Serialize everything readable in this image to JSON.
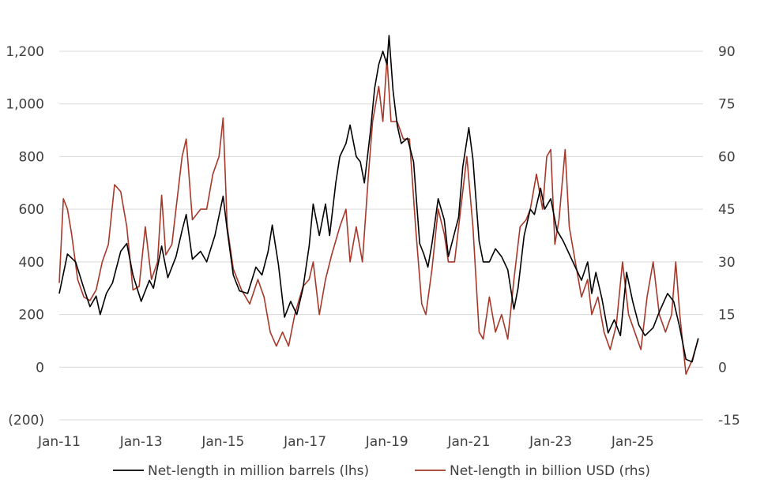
{
  "chart_data": {
    "type": "line",
    "grid": true,
    "legend_position": "bottom",
    "x_ticks": [
      "Jan-11",
      "Jan-13",
      "Jan-15",
      "Jan-17",
      "Jan-19",
      "Jan-21",
      "Jan-23",
      "Jan-25"
    ],
    "y_left": {
      "min": -200,
      "max": 1200,
      "ticks": [
        -200,
        0,
        200,
        400,
        600,
        800,
        1000,
        1200
      ],
      "tick_labels": [
        "(200)",
        "0",
        "200",
        "400",
        "600",
        "800",
        "1,000",
        "1,200"
      ]
    },
    "y_right": {
      "min": -15,
      "max": 90,
      "ticks": [
        -15,
        0,
        15,
        30,
        45,
        60,
        75,
        90
      ],
      "tick_labels": [
        "-15",
        "0",
        "15",
        "30",
        "45",
        "60",
        "75",
        "90"
      ]
    },
    "series": [
      {
        "name": "Net-length in million barrels (lhs)",
        "axis": "left",
        "color": "#000000",
        "points": [
          [
            2011.0,
            280
          ],
          [
            2011.2,
            430
          ],
          [
            2011.4,
            400
          ],
          [
            2011.6,
            300
          ],
          [
            2011.75,
            230
          ],
          [
            2011.9,
            270
          ],
          [
            2012.0,
            200
          ],
          [
            2012.15,
            280
          ],
          [
            2012.3,
            320
          ],
          [
            2012.5,
            440
          ],
          [
            2012.65,
            470
          ],
          [
            2012.8,
            350
          ],
          [
            2013.0,
            250
          ],
          [
            2013.2,
            330
          ],
          [
            2013.3,
            300
          ],
          [
            2013.5,
            460
          ],
          [
            2013.65,
            340
          ],
          [
            2013.85,
            420
          ],
          [
            2014.0,
            520
          ],
          [
            2014.1,
            580
          ],
          [
            2014.25,
            410
          ],
          [
            2014.45,
            440
          ],
          [
            2014.6,
            400
          ],
          [
            2014.8,
            500
          ],
          [
            2015.0,
            650
          ],
          [
            2015.1,
            520
          ],
          [
            2015.25,
            350
          ],
          [
            2015.4,
            290
          ],
          [
            2015.6,
            280
          ],
          [
            2015.8,
            380
          ],
          [
            2015.95,
            350
          ],
          [
            2016.1,
            440
          ],
          [
            2016.2,
            540
          ],
          [
            2016.35,
            390
          ],
          [
            2016.5,
            190
          ],
          [
            2016.65,
            250
          ],
          [
            2016.8,
            200
          ],
          [
            2016.95,
            300
          ],
          [
            2017.1,
            460
          ],
          [
            2017.2,
            620
          ],
          [
            2017.35,
            500
          ],
          [
            2017.5,
            620
          ],
          [
            2017.6,
            500
          ],
          [
            2017.75,
            700
          ],
          [
            2017.85,
            800
          ],
          [
            2018.0,
            850
          ],
          [
            2018.1,
            920
          ],
          [
            2018.25,
            800
          ],
          [
            2018.35,
            780
          ],
          [
            2018.45,
            700
          ],
          [
            2018.6,
            900
          ],
          [
            2018.7,
            1060
          ],
          [
            2018.8,
            1150
          ],
          [
            2018.9,
            1200
          ],
          [
            2019.0,
            1150
          ],
          [
            2019.05,
            1260
          ],
          [
            2019.15,
            1050
          ],
          [
            2019.25,
            920
          ],
          [
            2019.35,
            850
          ],
          [
            2019.5,
            870
          ],
          [
            2019.65,
            780
          ],
          [
            2019.8,
            470
          ],
          [
            2019.9,
            430
          ],
          [
            2020.0,
            380
          ],
          [
            2020.1,
            470
          ],
          [
            2020.25,
            640
          ],
          [
            2020.4,
            560
          ],
          [
            2020.5,
            420
          ],
          [
            2020.6,
            480
          ],
          [
            2020.75,
            570
          ],
          [
            2020.85,
            760
          ],
          [
            2021.0,
            910
          ],
          [
            2021.1,
            790
          ],
          [
            2021.25,
            480
          ],
          [
            2021.35,
            400
          ],
          [
            2021.5,
            400
          ],
          [
            2021.65,
            450
          ],
          [
            2021.8,
            420
          ],
          [
            2021.95,
            370
          ],
          [
            2022.1,
            220
          ],
          [
            2022.2,
            300
          ],
          [
            2022.35,
            500
          ],
          [
            2022.5,
            600
          ],
          [
            2022.6,
            580
          ],
          [
            2022.75,
            680
          ],
          [
            2022.85,
            600
          ],
          [
            2023.0,
            640
          ],
          [
            2023.15,
            520
          ],
          [
            2023.3,
            480
          ],
          [
            2023.45,
            430
          ],
          [
            2023.6,
            380
          ],
          [
            2023.75,
            330
          ],
          [
            2023.9,
            400
          ],
          [
            2024.0,
            280
          ],
          [
            2024.1,
            360
          ],
          [
            2024.25,
            260
          ],
          [
            2024.4,
            130
          ],
          [
            2024.55,
            180
          ],
          [
            2024.7,
            120
          ],
          [
            2024.85,
            360
          ],
          [
            2025.0,
            250
          ],
          [
            2025.15,
            160
          ],
          [
            2025.3,
            120
          ],
          [
            2025.5,
            150
          ],
          [
            2025.65,
            210
          ],
          [
            2025.85,
            280
          ],
          [
            2026.0,
            250
          ],
          [
            2026.15,
            150
          ],
          [
            2026.3,
            30
          ],
          [
            2026.45,
            20
          ],
          [
            2026.6,
            110
          ]
        ]
      },
      {
        "name": "Net-length in billion USD (rhs)",
        "axis": "right",
        "color": "#a6382a",
        "points": [
          [
            2011.0,
            24
          ],
          [
            2011.1,
            48
          ],
          [
            2011.2,
            45
          ],
          [
            2011.3,
            38
          ],
          [
            2011.45,
            25
          ],
          [
            2011.6,
            20
          ],
          [
            2011.75,
            19
          ],
          [
            2011.9,
            22
          ],
          [
            2012.05,
            30
          ],
          [
            2012.2,
            35
          ],
          [
            2012.35,
            52
          ],
          [
            2012.5,
            50
          ],
          [
            2012.65,
            40
          ],
          [
            2012.8,
            22
          ],
          [
            2012.95,
            23
          ],
          [
            2013.1,
            40
          ],
          [
            2013.25,
            25
          ],
          [
            2013.4,
            30
          ],
          [
            2013.5,
            49
          ],
          [
            2013.6,
            32
          ],
          [
            2013.75,
            35
          ],
          [
            2013.9,
            50
          ],
          [
            2014.0,
            60
          ],
          [
            2014.1,
            65
          ],
          [
            2014.25,
            42
          ],
          [
            2014.45,
            45
          ],
          [
            2014.6,
            45
          ],
          [
            2014.75,
            55
          ],
          [
            2014.9,
            60
          ],
          [
            2015.0,
            71
          ],
          [
            2015.1,
            40
          ],
          [
            2015.25,
            28
          ],
          [
            2015.45,
            22
          ],
          [
            2015.65,
            18
          ],
          [
            2015.85,
            25
          ],
          [
            2016.0,
            20
          ],
          [
            2016.15,
            10
          ],
          [
            2016.3,
            6
          ],
          [
            2016.45,
            10
          ],
          [
            2016.6,
            6
          ],
          [
            2016.75,
            15
          ],
          [
            2016.95,
            23
          ],
          [
            2017.1,
            25
          ],
          [
            2017.2,
            30
          ],
          [
            2017.35,
            15
          ],
          [
            2017.5,
            25
          ],
          [
            2017.65,
            32
          ],
          [
            2017.85,
            40
          ],
          [
            2018.0,
            45
          ],
          [
            2018.1,
            30
          ],
          [
            2018.25,
            40
          ],
          [
            2018.4,
            30
          ],
          [
            2018.55,
            55
          ],
          [
            2018.65,
            70
          ],
          [
            2018.8,
            80
          ],
          [
            2018.9,
            70
          ],
          [
            2019.0,
            88
          ],
          [
            2019.1,
            70
          ],
          [
            2019.25,
            70
          ],
          [
            2019.4,
            65
          ],
          [
            2019.55,
            65
          ],
          [
            2019.7,
            40
          ],
          [
            2019.85,
            18
          ],
          [
            2019.95,
            15
          ],
          [
            2020.1,
            28
          ],
          [
            2020.25,
            45
          ],
          [
            2020.4,
            38
          ],
          [
            2020.5,
            30
          ],
          [
            2020.65,
            30
          ],
          [
            2020.8,
            45
          ],
          [
            2020.95,
            60
          ],
          [
            2021.1,
            40
          ],
          [
            2021.25,
            10
          ],
          [
            2021.35,
            8
          ],
          [
            2021.5,
            20
          ],
          [
            2021.65,
            10
          ],
          [
            2021.8,
            15
          ],
          [
            2021.95,
            8
          ],
          [
            2022.1,
            25
          ],
          [
            2022.25,
            40
          ],
          [
            2022.4,
            42
          ],
          [
            2022.5,
            45
          ],
          [
            2022.65,
            55
          ],
          [
            2022.8,
            45
          ],
          [
            2022.9,
            60
          ],
          [
            2023.0,
            62
          ],
          [
            2023.1,
            35
          ],
          [
            2023.2,
            42
          ],
          [
            2023.35,
            62
          ],
          [
            2023.45,
            40
          ],
          [
            2023.6,
            30
          ],
          [
            2023.75,
            20
          ],
          [
            2023.9,
            25
          ],
          [
            2024.0,
            15
          ],
          [
            2024.15,
            20
          ],
          [
            2024.3,
            10
          ],
          [
            2024.45,
            5
          ],
          [
            2024.6,
            12
          ],
          [
            2024.75,
            30
          ],
          [
            2024.9,
            15
          ],
          [
            2025.05,
            10
          ],
          [
            2025.2,
            5
          ],
          [
            2025.35,
            20
          ],
          [
            2025.5,
            30
          ],
          [
            2025.65,
            15
          ],
          [
            2025.8,
            10
          ],
          [
            2025.95,
            15
          ],
          [
            2026.05,
            30
          ],
          [
            2026.15,
            15
          ],
          [
            2026.3,
            -2
          ],
          [
            2026.45,
            2
          ],
          [
            2026.6,
            8
          ]
        ]
      }
    ]
  },
  "legend": {
    "items": [
      {
        "label": "Net-length in million barrels (lhs)",
        "color": "#000000"
      },
      {
        "label": "Net-length in billion USD (rhs)",
        "color": "#a6382a"
      }
    ]
  }
}
